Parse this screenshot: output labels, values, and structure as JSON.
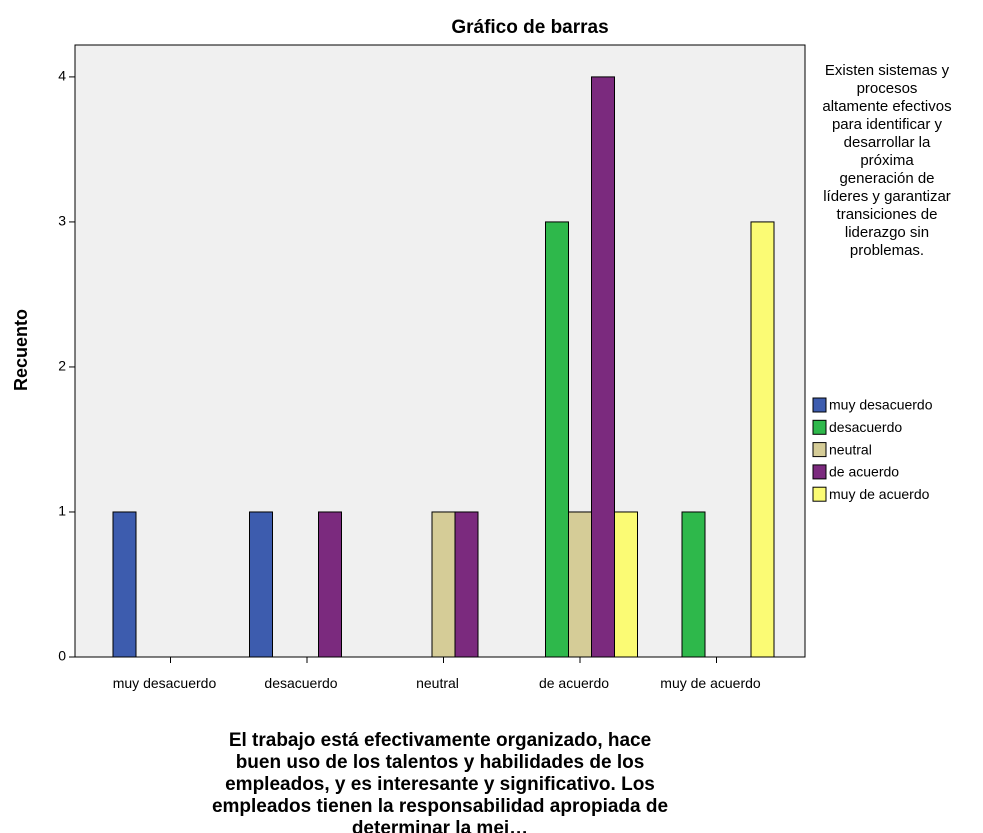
{
  "chart_data": {
    "type": "bar",
    "title": "Gráfico de barras",
    "x_label": "El trabajo está efectivamente organizado, hace buen uso de los talentos y habilidades de los empleados, y es interesante y significativo. Los empleados tienen la responsabilidad apropiada de determinar la mej…",
    "y_label": "Recuento",
    "legend_title": "Existen sistemas y procesos altamente efectivos para identificar y desarrollar la próxima generación de líderes y garantizar transiciones de liderazgo sin problemas.",
    "categories": [
      "muy desacuerdo",
      "desacuerdo",
      "neutral",
      "de acuerdo",
      "muy de acuerdo"
    ],
    "series": [
      {
        "name": "muy desacuerdo",
        "color": "#3d5cae",
        "values": [
          1,
          1,
          0,
          0,
          0
        ]
      },
      {
        "name": "desacuerdo",
        "color": "#2eb84b",
        "values": [
          0,
          0,
          0,
          3,
          1
        ]
      },
      {
        "name": "neutral",
        "color": "#d5cc97",
        "values": [
          0,
          0,
          1,
          1,
          0
        ]
      },
      {
        "name": "de acuerdo",
        "color": "#7b2a7e",
        "values": [
          0,
          1,
          1,
          4,
          0
        ]
      },
      {
        "name": "muy de acuerdo",
        "color": "#fbfb74",
        "values": [
          0,
          0,
          0,
          1,
          3
        ]
      }
    ],
    "ylim": [
      0,
      4.22
    ],
    "yticks": [
      0,
      1,
      2,
      3,
      4
    ]
  }
}
